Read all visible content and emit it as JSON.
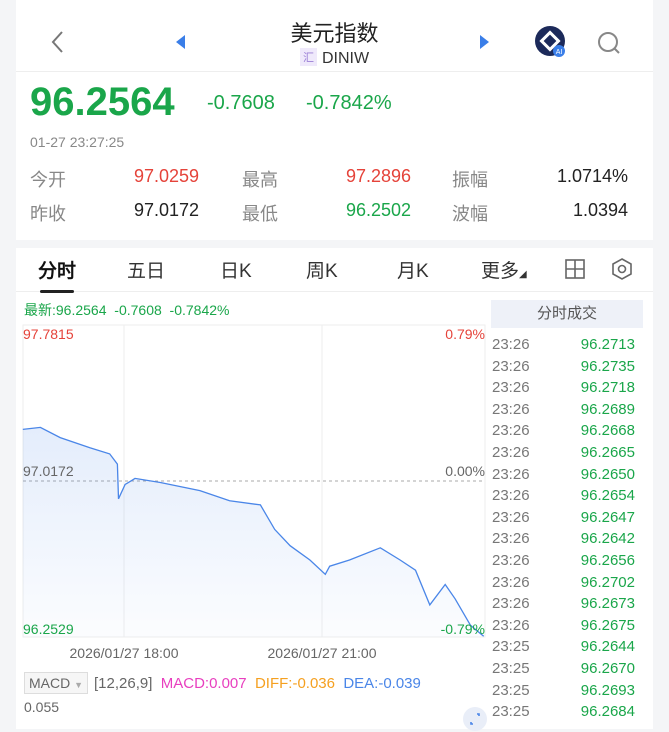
{
  "header": {
    "title": "美元指数",
    "badge": "汇",
    "code": "DINIW",
    "back_icon": "chevron-left-icon",
    "prev_icon": "triangle-left-icon",
    "next_icon": "triangle-right-icon",
    "ai_icon": "ai-assistant-icon",
    "ai_label": "AI",
    "search_icon": "search-icon"
  },
  "quote": {
    "price": "96.2564",
    "change": "-0.7608",
    "change_pct": "-0.7842%",
    "time": "01-27 23:27:25"
  },
  "stats": [
    {
      "label": "今开",
      "value": "97.0259",
      "color": "#e5433a"
    },
    {
      "label": "最高",
      "value": "97.2896",
      "color": "#e5433a"
    },
    {
      "label": "振幅",
      "value": "1.0714%",
      "color": "#222222"
    },
    {
      "label": "昨收",
      "value": "97.0172",
      "color": "#222222"
    },
    {
      "label": "最低",
      "value": "96.2502",
      "color": "#1aa64a"
    },
    {
      "label": "波幅",
      "value": "1.0394",
      "color": "#222222"
    }
  ],
  "tabs": [
    {
      "label": "分时",
      "active": true
    },
    {
      "label": "五日"
    },
    {
      "label": "日K"
    },
    {
      "label": "周K"
    },
    {
      "label": "月K"
    },
    {
      "label": "更多"
    }
  ],
  "tab_icons": [
    "grid-icon",
    "settings-hexagon-icon"
  ],
  "chart_info": {
    "latest_label": "最新:96.2564",
    "change": "-0.7608",
    "change_pct": "-0.7842%"
  },
  "chart_data": {
    "type": "line",
    "y_max_label": "97.7815",
    "y_mid_label": "97.0172",
    "y_min_label": "96.2529",
    "pct_max_label": "0.79%",
    "pct_mid_label": "0.00%",
    "pct_min_label": "-0.79%",
    "ylim": [
      96.2529,
      97.7815
    ],
    "reference": 97.0172,
    "x_tick_labels": [
      "2026/01/27 18:00",
      "2026/01/27 21:00"
    ],
    "x": [
      "16:28",
      "16:44",
      "17:02",
      "17:29",
      "17:47",
      "17:54",
      "17:55",
      "18:01",
      "18:10",
      "18:33",
      "19:09",
      "19:36",
      "20:04",
      "20:17",
      "20:31",
      "20:49",
      "21:03",
      "21:07",
      "21:25",
      "21:53",
      "22:11",
      "22:25",
      "22:38",
      "22:52",
      "23:01",
      "23:15",
      "23:27"
    ],
    "values": [
      97.27,
      97.28,
      97.23,
      97.18,
      97.15,
      97.1,
      96.93,
      97.0,
      97.03,
      97.01,
      96.97,
      96.92,
      96.9,
      96.78,
      96.7,
      96.63,
      96.56,
      96.6,
      96.63,
      96.69,
      96.63,
      96.58,
      96.41,
      96.51,
      96.44,
      96.31,
      96.2564
    ],
    "line_color": "#4a86e8"
  },
  "trades": {
    "title": "分时成交",
    "rows": [
      [
        "23:26",
        "96.2713"
      ],
      [
        "23:26",
        "96.2735"
      ],
      [
        "23:26",
        "96.2718"
      ],
      [
        "23:26",
        "96.2689"
      ],
      [
        "23:26",
        "96.2668"
      ],
      [
        "23:26",
        "96.2665"
      ],
      [
        "23:26",
        "96.2650"
      ],
      [
        "23:26",
        "96.2654"
      ],
      [
        "23:26",
        "96.2647"
      ],
      [
        "23:26",
        "96.2642"
      ],
      [
        "23:26",
        "96.2656"
      ],
      [
        "23:26",
        "96.2702"
      ],
      [
        "23:26",
        "96.2673"
      ],
      [
        "23:26",
        "96.2675"
      ],
      [
        "23:25",
        "96.2644"
      ],
      [
        "23:25",
        "96.2670"
      ],
      [
        "23:25",
        "96.2693"
      ],
      [
        "23:25",
        "96.2684"
      ]
    ]
  },
  "macd": {
    "selector": "MACD",
    "params": "[12,26,9]",
    "macd": "MACD:0.007",
    "diff": "DIFF:-0.036",
    "dea": "DEA:-0.039",
    "y_top": "0.055",
    "expand_icon": "expand-icon"
  }
}
